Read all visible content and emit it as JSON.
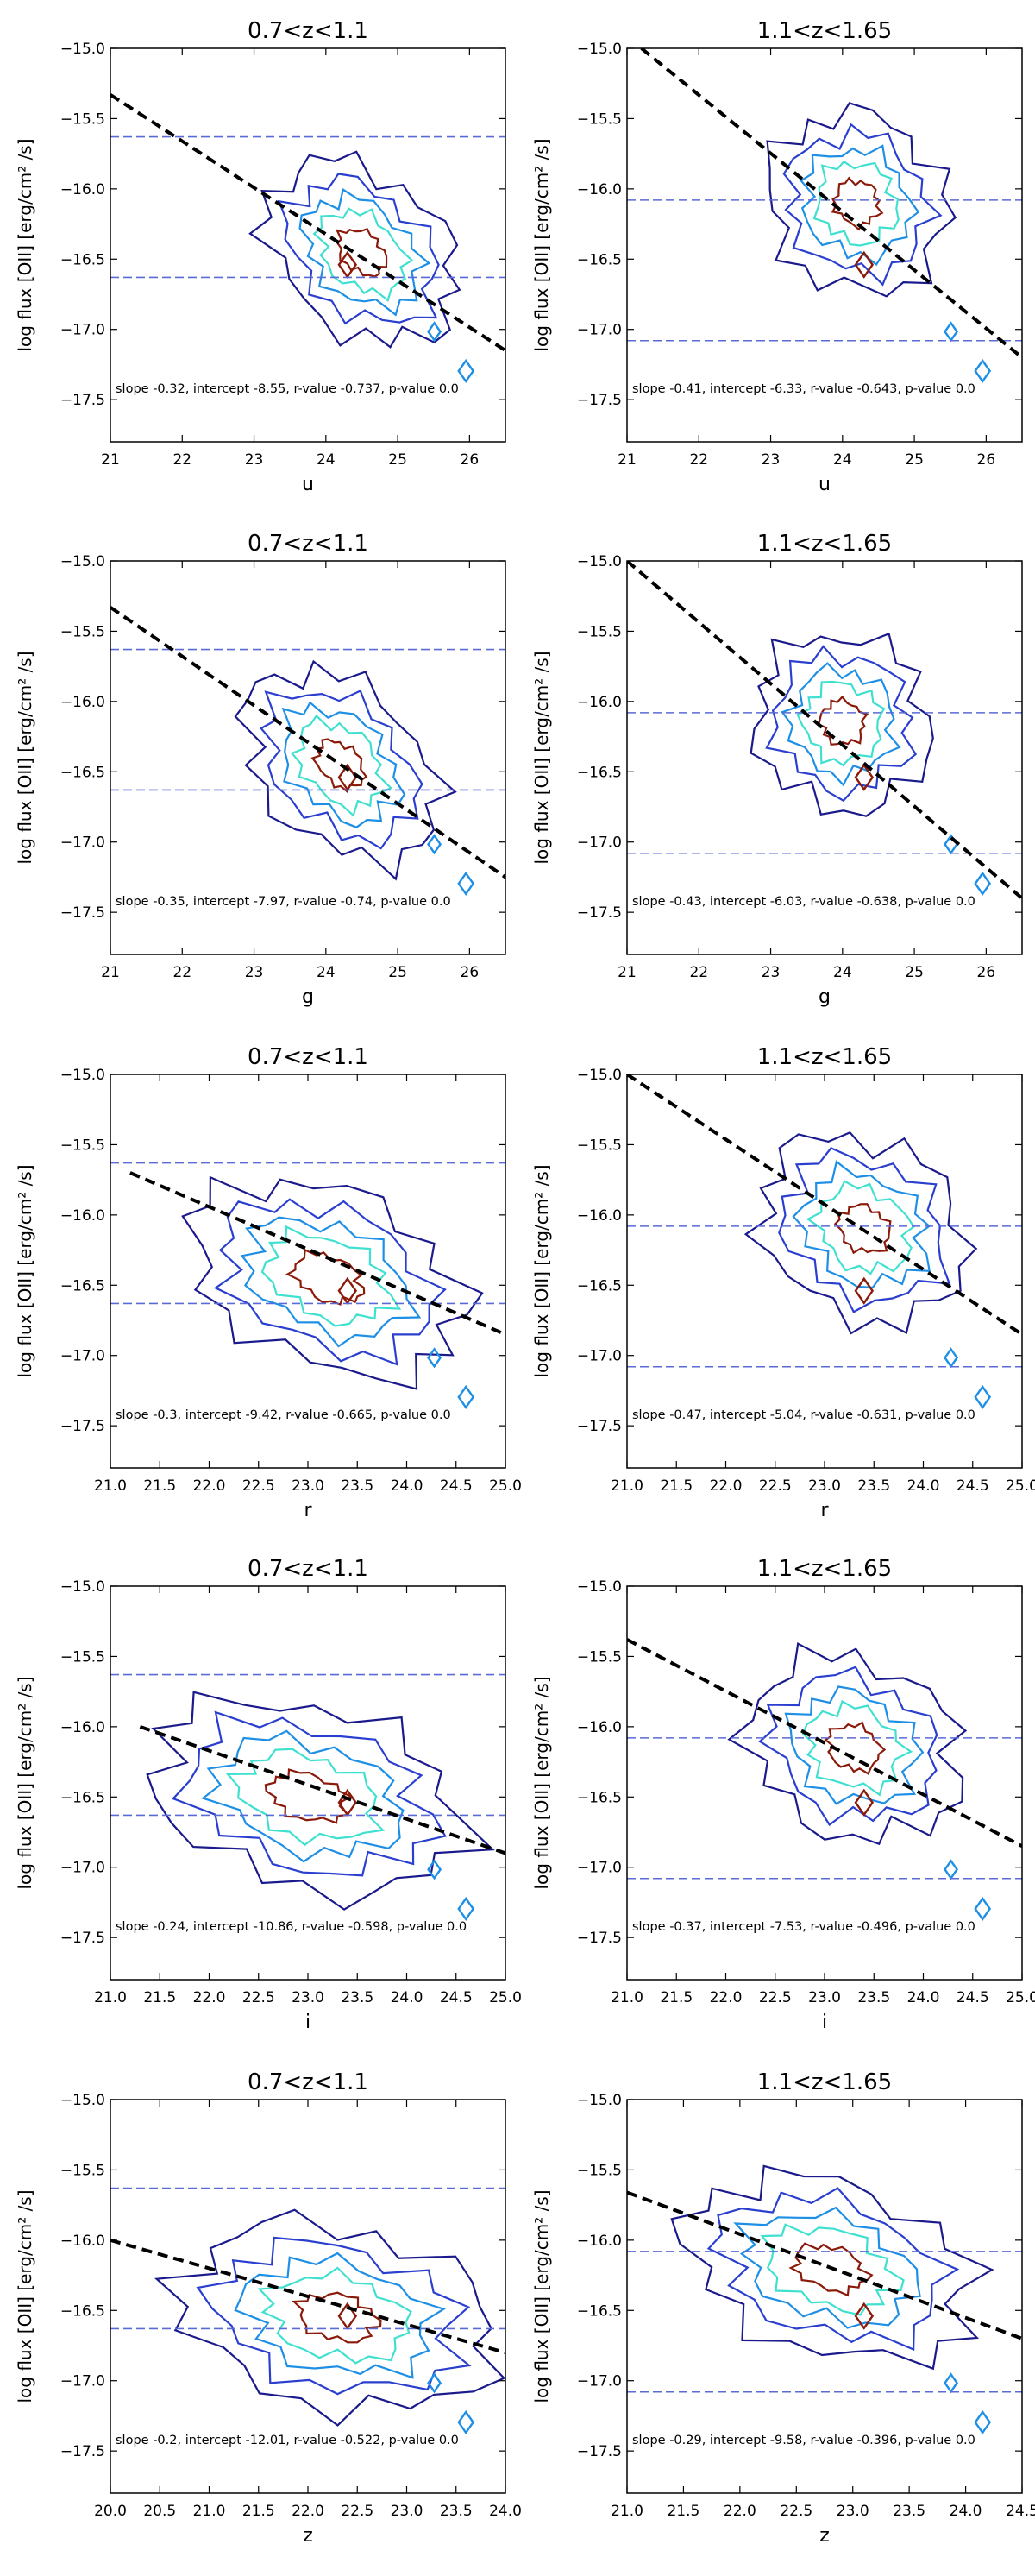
{
  "figure": {
    "ylabel": "log flux [OII] [erg/cm² /s]",
    "zbins": [
      "0.7<z<1.1",
      "1.1<z<1.65"
    ]
  },
  "colors": {
    "level1": "#1a1a8c",
    "level2": "#2a3fcf",
    "level3": "#1e8fe6",
    "level4": "#40e0d0",
    "level5": "#8b1a0a",
    "fit": "#000000",
    "hline": "#5a6bd6"
  },
  "chart_data": [
    {
      "type": "contour",
      "title": "0.7<z<1.1",
      "xlabel": "u",
      "ylabel": "log flux [OII] [erg/cm² /s]",
      "xlim": [
        21,
        26.5
      ],
      "ylim": [
        -17.8,
        -15.0
      ],
      "xticks": [
        21,
        22,
        23,
        24,
        25,
        26
      ],
      "xticklabels": [
        "21",
        "22",
        "23",
        "24",
        "25",
        "26"
      ],
      "yticks": [
        -15.0,
        -15.5,
        -16.0,
        -16.5,
        -17.0,
        -17.5
      ],
      "yticklabels": [
        "−15.0",
        "−15.5",
        "−16.0",
        "−16.5",
        "−17.0",
        "−17.5"
      ],
      "center": [
        24.5,
        -16.45
      ],
      "spread": [
        1.5,
        0.72
      ],
      "tilt": -0.45,
      "hlines": [
        -15.63,
        -16.63
      ],
      "fit": {
        "x": [
          21.0,
          26.5
        ],
        "y": [
          -15.33,
          -17.15
        ]
      },
      "annotation": "slope -0.32, intercept -8.55, r-value -0.737, p-value 0.0"
    },
    {
      "type": "contour",
      "title": "1.1<z<1.65",
      "xlabel": "u",
      "ylabel": "log flux [OII] [erg/cm² /s]",
      "xlim": [
        21,
        26.5
      ],
      "ylim": [
        -17.8,
        -15.0
      ],
      "xticks": [
        21,
        22,
        23,
        24,
        25,
        26
      ],
      "xticklabels": [
        "21",
        "22",
        "23",
        "24",
        "25",
        "26"
      ],
      "yticks": [
        -15.0,
        -15.5,
        -16.0,
        -16.5,
        -17.0,
        -17.5
      ],
      "yticklabels": [
        "−15.0",
        "−15.5",
        "−16.0",
        "−16.5",
        "−17.0",
        "−17.5"
      ],
      "center": [
        24.2,
        -16.1
      ],
      "spread": [
        1.3,
        0.8
      ],
      "tilt": -0.55,
      "hlines": [
        -16.08,
        -17.08
      ],
      "fit": {
        "x": [
          21.2,
          26.5
        ],
        "y": [
          -15.0,
          -17.2
        ]
      },
      "annotation": "slope -0.41, intercept -6.33, r-value -0.643, p-value 0.0"
    },
    {
      "type": "contour",
      "title": "0.7<z<1.1",
      "xlabel": "g",
      "ylabel": "log flux [OII] [erg/cm² /s]",
      "xlim": [
        21,
        26.5
      ],
      "ylim": [
        -17.8,
        -15.0
      ],
      "xticks": [
        21,
        22,
        23,
        24,
        25,
        26
      ],
      "xticklabels": [
        "21",
        "22",
        "23",
        "24",
        "25",
        "26"
      ],
      "yticks": [
        -15.0,
        -15.5,
        -16.0,
        -16.5,
        -17.0,
        -17.5
      ],
      "yticklabels": [
        "−15.0",
        "−15.5",
        "−16.0",
        "−16.5",
        "−17.0",
        "−17.5"
      ],
      "center": [
        24.2,
        -16.45
      ],
      "spread": [
        1.55,
        0.72
      ],
      "tilt": -0.5,
      "hlines": [
        -15.63,
        -16.63
      ],
      "fit": {
        "x": [
          21.0,
          26.5
        ],
        "y": [
          -15.33,
          -17.25
        ]
      },
      "annotation": "slope -0.35, intercept -7.97, r-value -0.74, p-value 0.0"
    },
    {
      "type": "contour",
      "title": "1.1<z<1.65",
      "xlabel": "g",
      "ylabel": "log flux [OII] [erg/cm² /s]",
      "xlim": [
        21,
        26.5
      ],
      "ylim": [
        -17.8,
        -15.0
      ],
      "xticks": [
        21,
        22,
        23,
        24,
        25,
        26
      ],
      "xticklabels": [
        "21",
        "22",
        "23",
        "24",
        "25",
        "26"
      ],
      "yticks": [
        -15.0,
        -15.5,
        -16.0,
        -16.5,
        -17.0,
        -17.5
      ],
      "yticklabels": [
        "−15.0",
        "−15.5",
        "−16.0",
        "−16.5",
        "−17.0",
        "−17.5"
      ],
      "center": [
        24.0,
        -16.15
      ],
      "spread": [
        1.25,
        0.8
      ],
      "tilt": -0.6,
      "hlines": [
        -16.08,
        -17.08
      ],
      "fit": {
        "x": [
          21.0,
          26.5
        ],
        "y": [
          -15.0,
          -17.4
        ]
      },
      "annotation": "slope -0.43, intercept -6.03, r-value -0.638, p-value 0.0"
    },
    {
      "type": "contour",
      "title": "0.7<z<1.1",
      "xlabel": "r",
      "ylabel": "log flux [OII] [erg/cm² /s]",
      "xlim": [
        21,
        25
      ],
      "ylim": [
        -17.8,
        -15.0
      ],
      "xticks": [
        21,
        21.5,
        22,
        22.5,
        23,
        23.5,
        24,
        24.5,
        25
      ],
      "xticklabels": [
        "21.0",
        "21.5",
        "22.0",
        "22.5",
        "23.0",
        "23.5",
        "24.0",
        "24.5",
        "25.0"
      ],
      "yticks": [
        -15.0,
        -15.5,
        -16.0,
        -16.5,
        -17.0,
        -17.5
      ],
      "yticklabels": [
        "−15.0",
        "−15.5",
        "−16.0",
        "−16.5",
        "−17.0",
        "−17.5"
      ],
      "center": [
        23.2,
        -16.45
      ],
      "spread": [
        1.45,
        0.82
      ],
      "tilt": -0.3,
      "hlines": [
        -15.63,
        -16.63
      ],
      "fit": {
        "x": [
          21.2,
          25.0
        ],
        "y": [
          -15.7,
          -16.85
        ]
      },
      "annotation": "slope -0.3, intercept -9.42, r-value -0.665, p-value 0.0"
    },
    {
      "type": "contour",
      "title": "1.1<z<1.65",
      "xlabel": "r",
      "ylabel": "log flux [OII] [erg/cm² /s]",
      "xlim": [
        21,
        25
      ],
      "ylim": [
        -17.8,
        -15.0
      ],
      "xticks": [
        21,
        21.5,
        22,
        22.5,
        23,
        23.5,
        24,
        24.5,
        25
      ],
      "xticklabels": [
        "21.0",
        "21.5",
        "22.0",
        "22.5",
        "23.0",
        "23.5",
        "24.0",
        "24.5",
        "25.0"
      ],
      "yticks": [
        -15.0,
        -15.5,
        -16.0,
        -16.5,
        -17.0,
        -17.5
      ],
      "yticklabels": [
        "−15.0",
        "−15.5",
        "−16.0",
        "−16.5",
        "−17.0",
        "−17.5"
      ],
      "center": [
        23.4,
        -16.1
      ],
      "spread": [
        1.1,
        0.82
      ],
      "tilt": -0.45,
      "hlines": [
        -16.08,
        -17.08
      ],
      "fit": {
        "x": [
          21.0,
          25.0
        ],
        "y": [
          -15.0,
          -16.85
        ]
      },
      "annotation": "slope -0.47, intercept -5.04, r-value -0.631, p-value 0.0"
    },
    {
      "type": "contour",
      "title": "0.7<z<1.1",
      "xlabel": "i",
      "ylabel": "log flux [OII] [erg/cm² /s]",
      "xlim": [
        21,
        25
      ],
      "ylim": [
        -17.8,
        -15.0
      ],
      "xticks": [
        21,
        21.5,
        22,
        22.5,
        23,
        23.5,
        24,
        24.5,
        25
      ],
      "xticklabels": [
        "21.0",
        "21.5",
        "22.0",
        "22.5",
        "23.0",
        "23.5",
        "24.0",
        "24.5",
        "25.0"
      ],
      "yticks": [
        -15.0,
        -15.5,
        -16.0,
        -16.5,
        -17.0,
        -17.5
      ],
      "yticklabels": [
        "−15.0",
        "−15.5",
        "−16.0",
        "−16.5",
        "−17.0",
        "−17.5"
      ],
      "center": [
        23.0,
        -16.5
      ],
      "spread": [
        1.6,
        0.85
      ],
      "tilt": -0.2,
      "hlines": [
        -15.63,
        -16.63
      ],
      "fit": {
        "x": [
          21.3,
          25.0
        ],
        "y": [
          -16.0,
          -16.9
        ]
      },
      "annotation": "slope -0.24, intercept -10.86, r-value -0.598, p-value 0.0"
    },
    {
      "type": "contour",
      "title": "1.1<z<1.65",
      "xlabel": "i",
      "ylabel": "log flux [OII] [erg/cm² /s]",
      "xlim": [
        21,
        25
      ],
      "ylim": [
        -17.8,
        -15.0
      ],
      "xticks": [
        21,
        21.5,
        22,
        22.5,
        23,
        23.5,
        24,
        24.5,
        25
      ],
      "xticklabels": [
        "21.0",
        "21.5",
        "22.0",
        "22.5",
        "23.0",
        "23.5",
        "24.0",
        "24.5",
        "25.0"
      ],
      "yticks": [
        -15.0,
        -15.5,
        -16.0,
        -16.5,
        -17.0,
        -17.5
      ],
      "yticklabels": [
        "−15.0",
        "−15.5",
        "−16.0",
        "−16.5",
        "−17.0",
        "−17.5"
      ],
      "center": [
        23.3,
        -16.15
      ],
      "spread": [
        1.1,
        0.82
      ],
      "tilt": -0.35,
      "hlines": [
        -16.08,
        -17.08
      ],
      "fit": {
        "x": [
          21.0,
          25.0
        ],
        "y": [
          -15.38,
          -16.85
        ]
      },
      "annotation": "slope -0.37, intercept -7.53, r-value -0.496, p-value 0.0"
    },
    {
      "type": "contour",
      "title": "0.7<z<1.1",
      "xlabel": "z",
      "ylabel": "log flux [OII] [erg/cm² /s]",
      "xlim": [
        20,
        24
      ],
      "ylim": [
        -17.8,
        -15.0
      ],
      "xticks": [
        20,
        20.5,
        21,
        21.5,
        22,
        22.5,
        23,
        23.5,
        24
      ],
      "xticklabels": [
        "20.0",
        "20.5",
        "21.0",
        "21.5",
        "22.0",
        "22.5",
        "23.0",
        "23.5",
        "24.0"
      ],
      "yticks": [
        -15.0,
        -15.5,
        -16.0,
        -16.5,
        -17.0,
        -17.5
      ],
      "yticklabels": [
        "−15.0",
        "−15.5",
        "−16.0",
        "−16.5",
        "−17.0",
        "−17.5"
      ],
      "center": [
        22.3,
        -16.55
      ],
      "spread": [
        1.6,
        0.85
      ],
      "tilt": -0.15,
      "hlines": [
        -15.63,
        -16.63
      ],
      "fit": {
        "x": [
          20.0,
          24.0
        ],
        "y": [
          -16.0,
          -16.8
        ]
      },
      "annotation": "slope -0.2, intercept -12.01, r-value -0.522, p-value 0.0"
    },
    {
      "type": "contour",
      "title": "1.1<z<1.65",
      "xlabel": "z",
      "ylabel": "log flux [OII] [erg/cm² /s]",
      "xlim": [
        21,
        24.5
      ],
      "ylim": [
        -17.8,
        -15.0
      ],
      "xticks": [
        21,
        21.5,
        22,
        22.5,
        23,
        23.5,
        24,
        24.5
      ],
      "xticklabels": [
        "21.0",
        "21.5",
        "22.0",
        "22.5",
        "23.0",
        "23.5",
        "24.0",
        "24.5"
      ],
      "yticks": [
        -15.0,
        -15.5,
        -16.0,
        -16.5,
        -17.0,
        -17.5
      ],
      "yticklabels": [
        "−15.0",
        "−15.5",
        "−16.0",
        "−16.5",
        "−17.0",
        "−17.5"
      ],
      "center": [
        22.8,
        -16.2
      ],
      "spread": [
        1.3,
        0.8
      ],
      "tilt": -0.25,
      "hlines": [
        -16.08,
        -17.08
      ],
      "fit": {
        "x": [
          21.0,
          24.5
        ],
        "y": [
          -15.66,
          -16.7
        ]
      },
      "annotation": "slope -0.29, intercept -9.58, r-value -0.396, p-value 0.0"
    }
  ]
}
